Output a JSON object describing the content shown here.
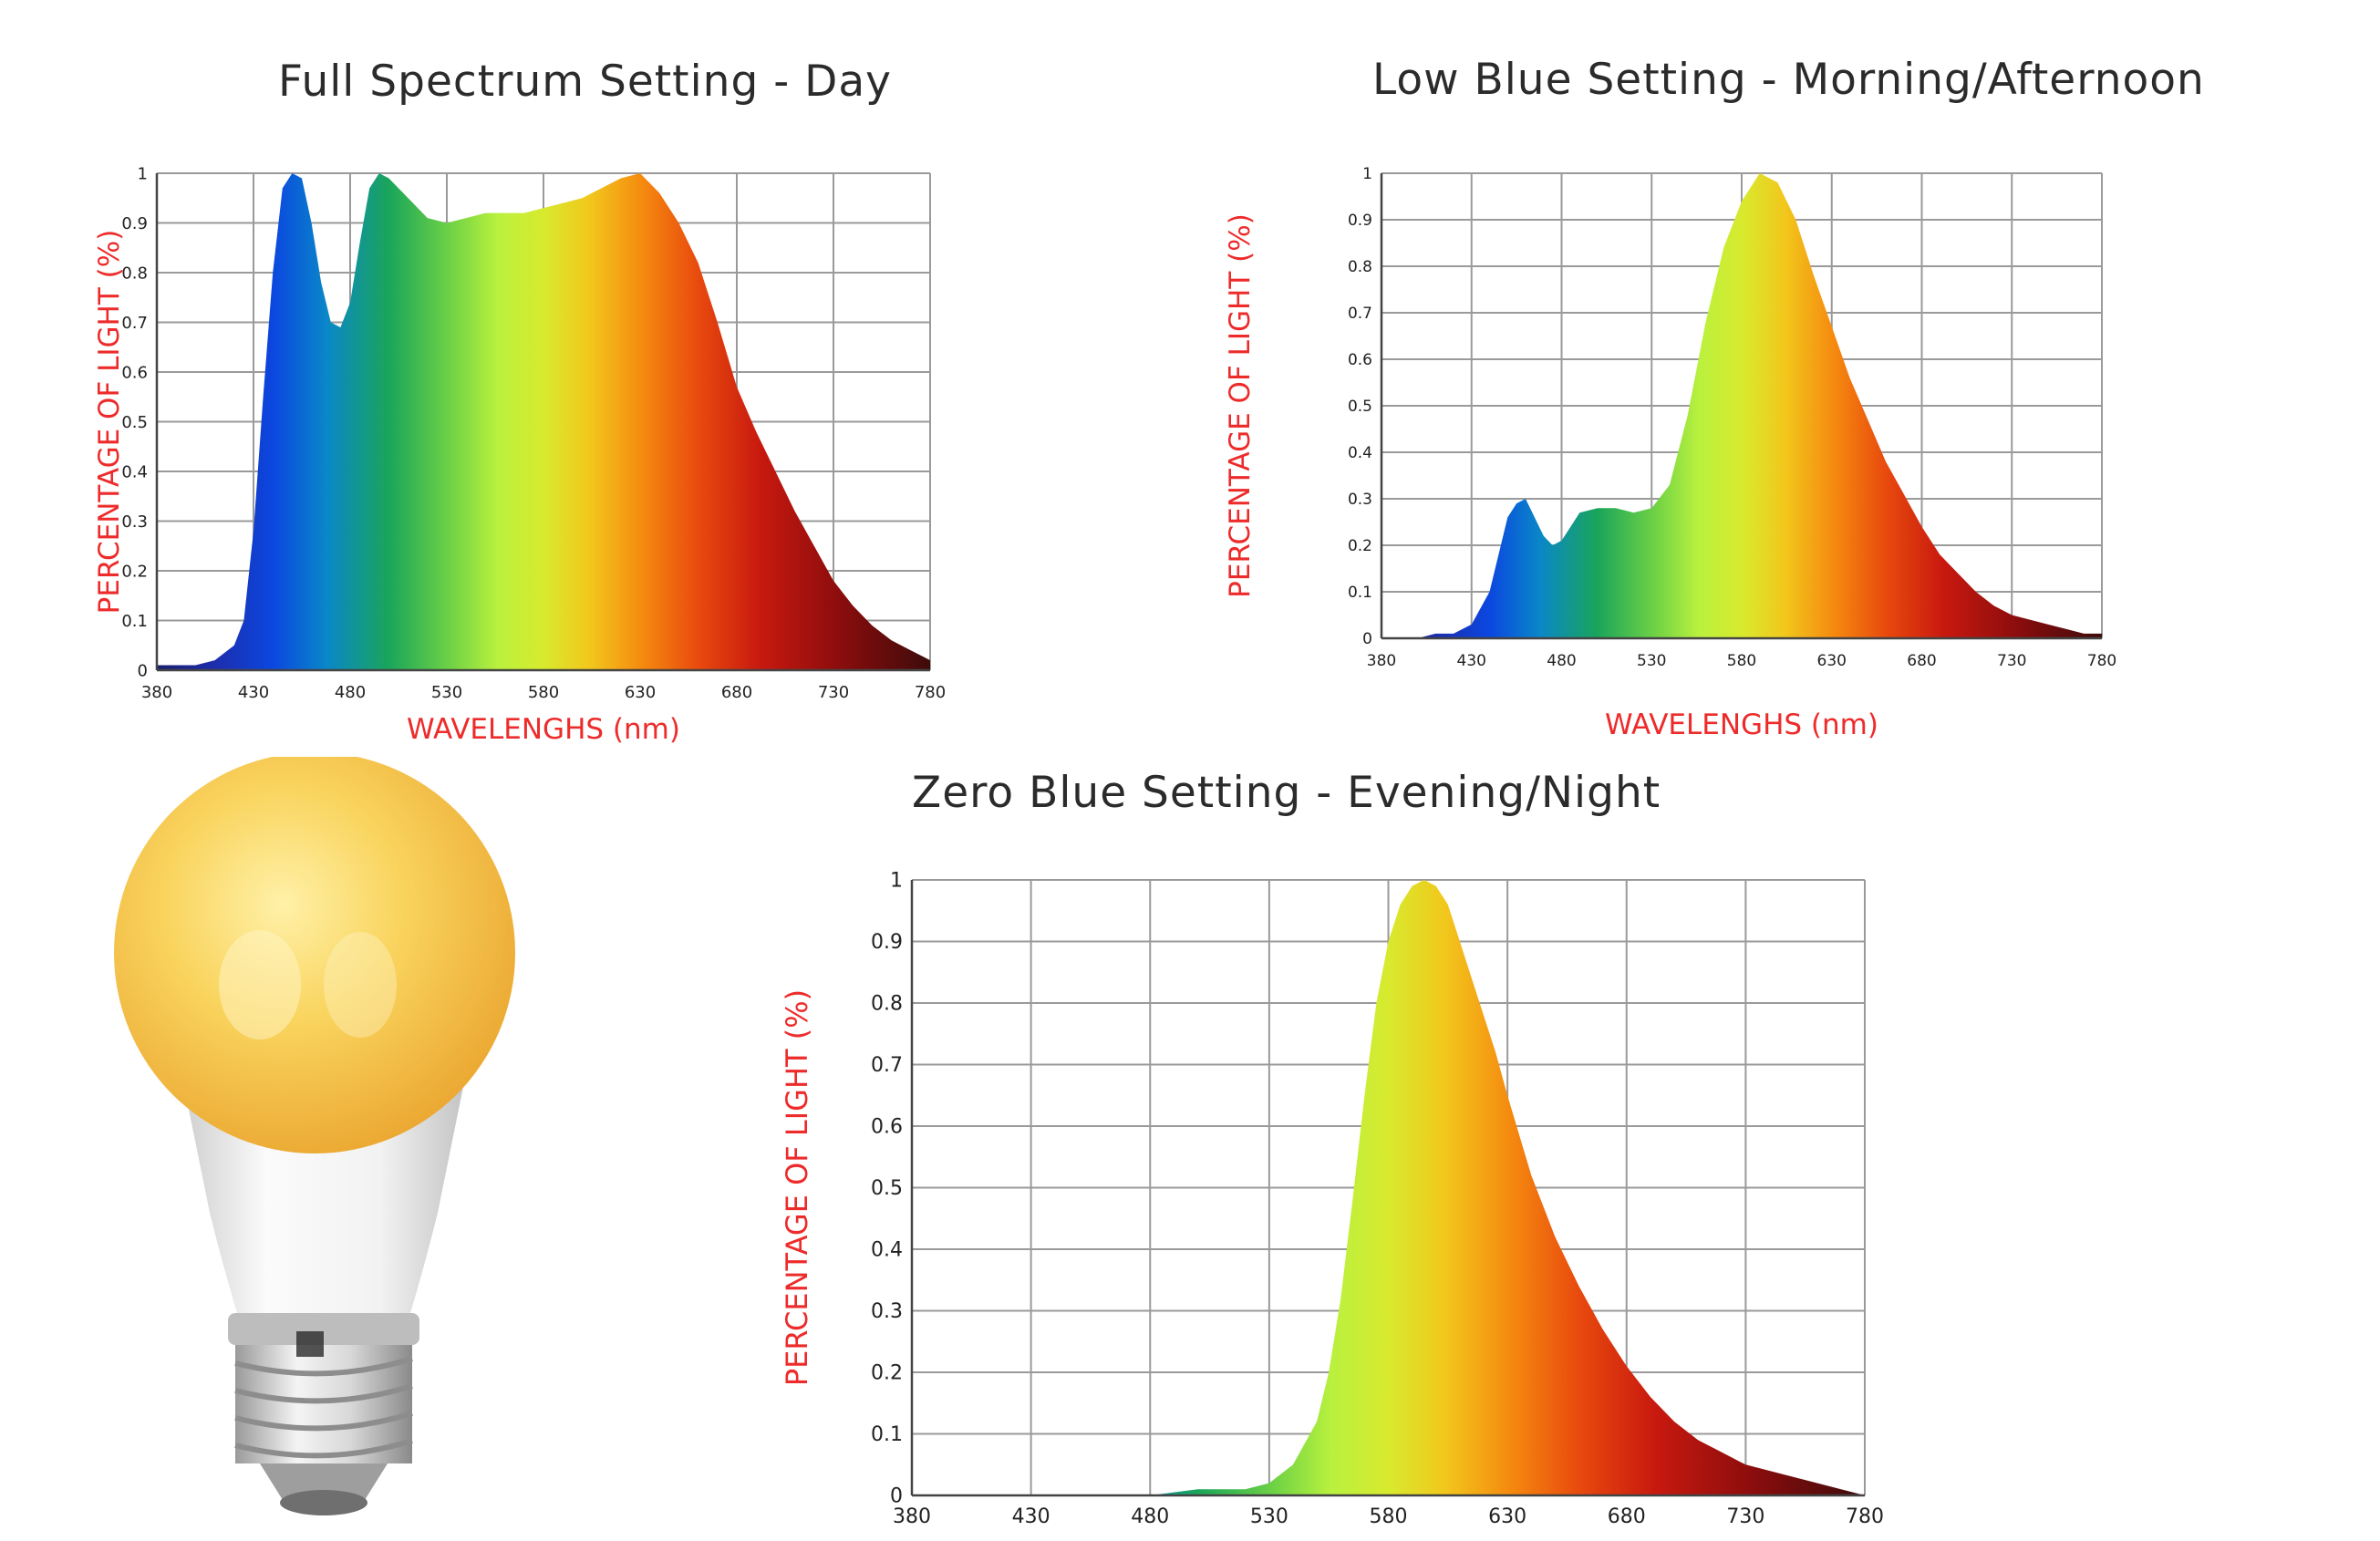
{
  "chart_data": [
    {
      "type": "area",
      "title": "Full Spectrum Setting - Day",
      "xlabel": "WAVELENGHS (nm)",
      "ylabel": "PERCENTAGE OF LIGHT (%)",
      "x_ticks": [
        380,
        430,
        480,
        530,
        580,
        630,
        680,
        730,
        780
      ],
      "y_ticks": [
        "0",
        "0.1",
        "0.2",
        "0.3",
        "0.4",
        "0.5",
        "0.6",
        "0.7",
        "0.8",
        "0.9",
        "1"
      ],
      "xlim": [
        380,
        780
      ],
      "ylim": [
        0,
        1
      ],
      "grid": true,
      "series": [
        {
          "x": [
            380,
            390,
            400,
            410,
            420,
            425,
            430,
            435,
            440,
            445,
            450,
            455,
            460,
            465,
            470,
            475,
            480,
            485,
            490,
            495,
            500,
            505,
            510,
            520,
            530,
            540,
            550,
            560,
            570,
            580,
            590,
            600,
            610,
            620,
            630,
            640,
            650,
            660,
            670,
            680,
            690,
            700,
            710,
            720,
            730,
            740,
            750,
            760,
            770,
            780
          ],
          "y": [
            0.01,
            0.01,
            0.01,
            0.02,
            0.05,
            0.1,
            0.28,
            0.55,
            0.8,
            0.97,
            1.0,
            0.99,
            0.9,
            0.78,
            0.7,
            0.69,
            0.74,
            0.86,
            0.97,
            1.0,
            0.99,
            0.97,
            0.95,
            0.91,
            0.9,
            0.91,
            0.92,
            0.92,
            0.92,
            0.93,
            0.94,
            0.95,
            0.97,
            0.99,
            1.0,
            0.96,
            0.9,
            0.82,
            0.7,
            0.57,
            0.48,
            0.4,
            0.32,
            0.25,
            0.18,
            0.13,
            0.09,
            0.06,
            0.04,
            0.02
          ]
        }
      ]
    },
    {
      "type": "area",
      "title": "Low Blue Setting - Morning/Afternoon",
      "xlabel": "WAVELENGHS (nm)",
      "ylabel": "PERCENTAGE OF LIGHT (%)",
      "x_ticks": [
        380,
        430,
        480,
        530,
        580,
        630,
        680,
        730,
        780
      ],
      "y_ticks": [
        "0",
        "0.1",
        "0.2",
        "0.3",
        "0.4",
        "0.5",
        "0.6",
        "0.7",
        "0.8",
        "0.9",
        "1"
      ],
      "xlim": [
        380,
        780
      ],
      "ylim": [
        0,
        1
      ],
      "grid": true,
      "series": [
        {
          "x": [
            380,
            390,
            400,
            410,
            420,
            430,
            440,
            450,
            455,
            460,
            465,
            470,
            475,
            480,
            485,
            490,
            500,
            510,
            520,
            530,
            540,
            550,
            560,
            570,
            580,
            590,
            600,
            610,
            620,
            630,
            640,
            650,
            660,
            670,
            680,
            690,
            700,
            710,
            720,
            730,
            740,
            750,
            760,
            770,
            780
          ],
          "y": [
            0.0,
            0.0,
            0.0,
            0.01,
            0.01,
            0.03,
            0.1,
            0.26,
            0.29,
            0.3,
            0.26,
            0.22,
            0.2,
            0.21,
            0.24,
            0.27,
            0.28,
            0.28,
            0.27,
            0.28,
            0.33,
            0.48,
            0.68,
            0.84,
            0.94,
            1.0,
            0.98,
            0.9,
            0.78,
            0.67,
            0.56,
            0.47,
            0.38,
            0.31,
            0.24,
            0.18,
            0.14,
            0.1,
            0.07,
            0.05,
            0.04,
            0.03,
            0.02,
            0.01,
            0.01
          ]
        }
      ]
    },
    {
      "type": "area",
      "title": "Zero Blue Setting - Evening/Night",
      "xlabel": "",
      "ylabel": "PERCENTAGE OF LIGHT (%)",
      "x_ticks": [
        380,
        430,
        480,
        530,
        580,
        630,
        680,
        730,
        780
      ],
      "y_ticks": [
        "0",
        "0.1",
        "0.2",
        "0.3",
        "0.4",
        "0.5",
        "0.6",
        "0.7",
        "0.8",
        "0.9",
        "1"
      ],
      "xlim": [
        380,
        780
      ],
      "ylim": [
        0,
        1
      ],
      "grid": true,
      "series": [
        {
          "x": [
            380,
            400,
            420,
            440,
            460,
            480,
            500,
            510,
            520,
            530,
            540,
            550,
            555,
            560,
            565,
            570,
            575,
            580,
            585,
            590,
            595,
            600,
            605,
            610,
            615,
            620,
            625,
            630,
            640,
            650,
            660,
            670,
            680,
            690,
            700,
            710,
            720,
            730,
            740,
            750,
            760,
            770,
            780
          ],
          "y": [
            0.0,
            0.0,
            0.0,
            0.0,
            0.0,
            0.0,
            0.01,
            0.01,
            0.01,
            0.02,
            0.05,
            0.12,
            0.2,
            0.32,
            0.48,
            0.65,
            0.8,
            0.9,
            0.96,
            0.99,
            1.0,
            0.99,
            0.96,
            0.9,
            0.84,
            0.78,
            0.72,
            0.65,
            0.52,
            0.42,
            0.34,
            0.27,
            0.21,
            0.16,
            0.12,
            0.09,
            0.07,
            0.05,
            0.04,
            0.03,
            0.02,
            0.01,
            0.0
          ]
        }
      ]
    }
  ],
  "colors": {
    "axis_label": "#ed2b2b",
    "title": "#2b2b2b",
    "grid": "#9a9a9a",
    "bulb_glass": "#f6c64a",
    "bulb_base": "#f0f0f0"
  },
  "illustration": {
    "icon": "yellow-light-bulb-icon"
  }
}
